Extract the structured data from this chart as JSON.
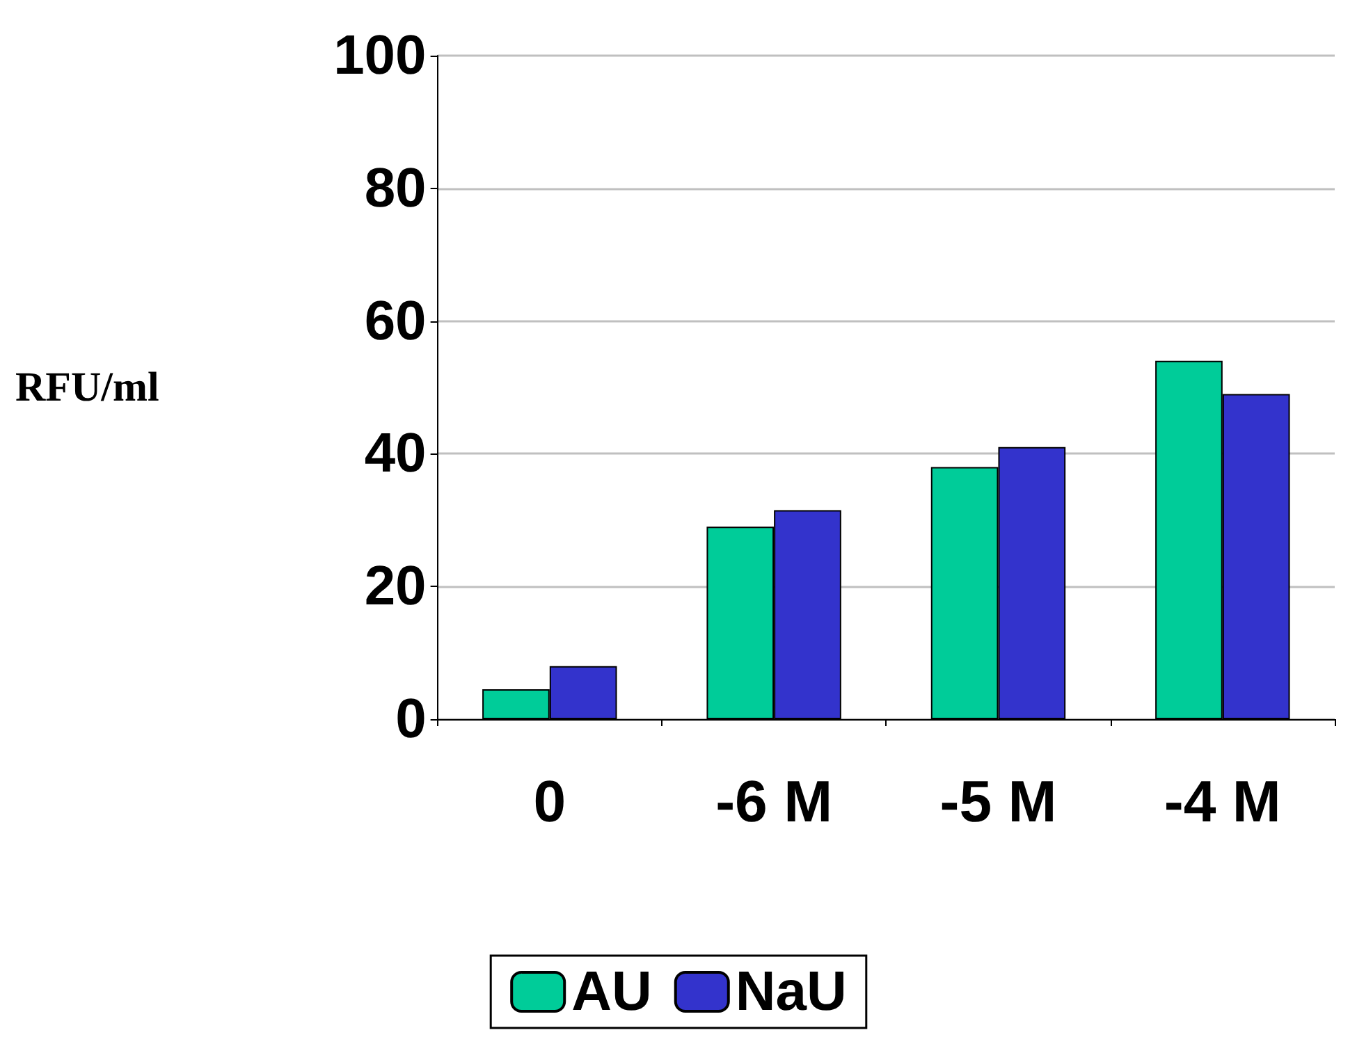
{
  "chart_data": {
    "type": "bar",
    "ylabel": "RFU/ml",
    "categories": [
      "0",
      "-6 M",
      "-5 M",
      "-4 M"
    ],
    "series": [
      {
        "name": "AU",
        "color": "#00cc99",
        "values": [
          4.5,
          29,
          38,
          54
        ]
      },
      {
        "name": "NaU",
        "color": "#3333cc",
        "values": [
          8,
          31.5,
          41,
          49
        ]
      }
    ],
    "ylim": [
      0,
      100
    ],
    "yticks": [
      0,
      20,
      40,
      60,
      80,
      100
    ],
    "grid": "y",
    "legend": "bottom"
  }
}
